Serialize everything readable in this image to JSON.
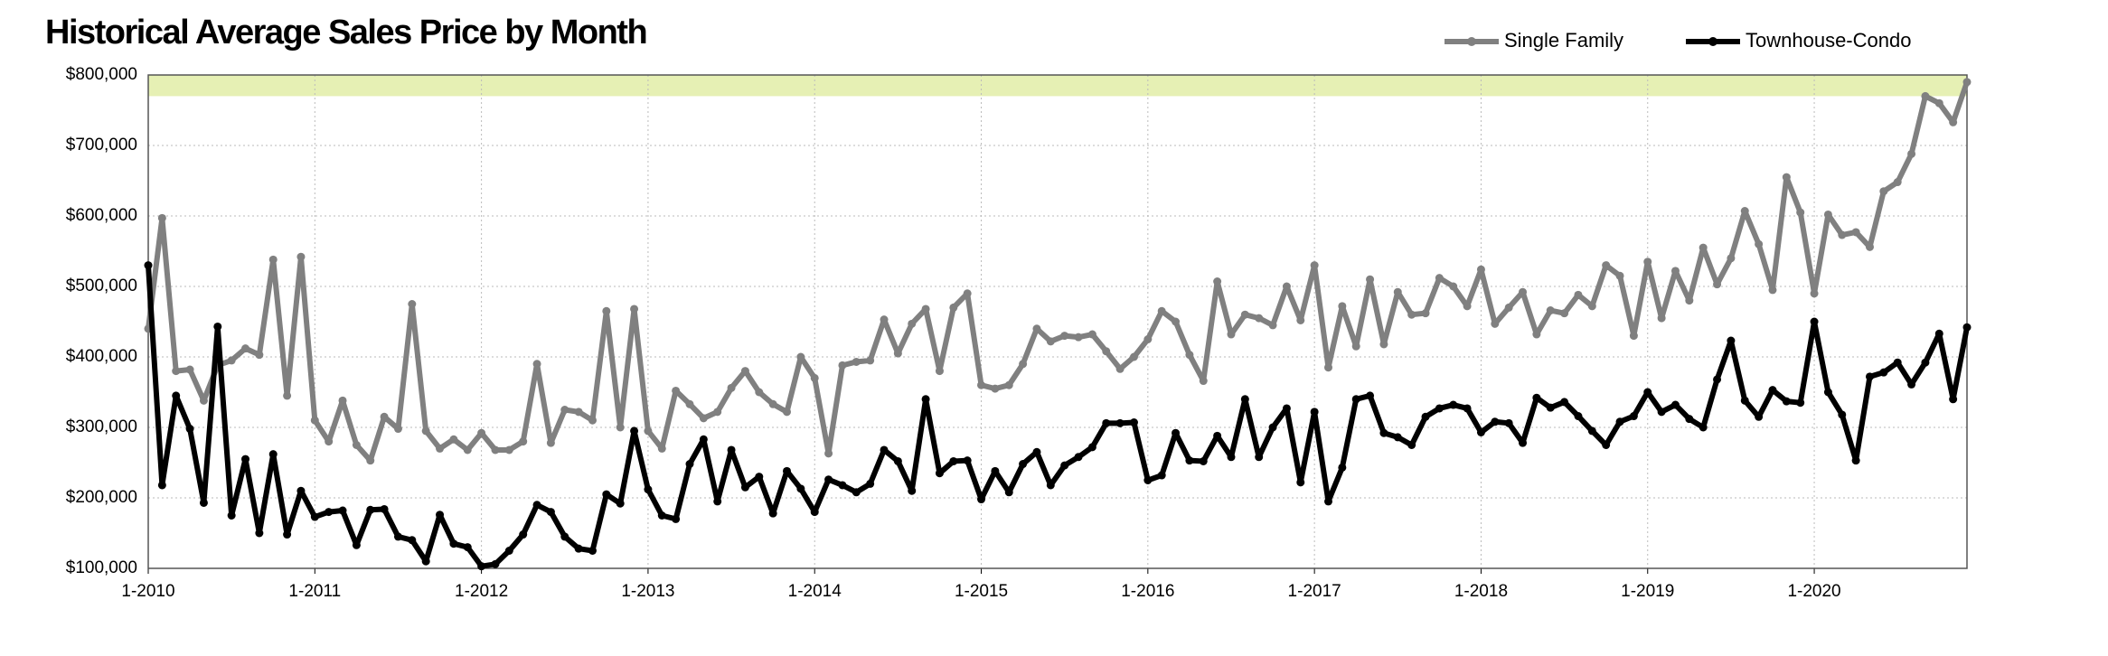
{
  "chart_data": {
    "type": "line",
    "title": "Historical Average Sales Price by Month",
    "categories": [
      "1-2010",
      null,
      null,
      null,
      null,
      null,
      null,
      null,
      null,
      null,
      null,
      null,
      "1-2011",
      null,
      null,
      null,
      null,
      null,
      null,
      null,
      null,
      null,
      null,
      null,
      "1-2012",
      null,
      null,
      null,
      null,
      null,
      null,
      null,
      null,
      null,
      null,
      null,
      "1-2013",
      null,
      null,
      null,
      null,
      null,
      null,
      null,
      null,
      null,
      null,
      null,
      "1-2014",
      null,
      null,
      null,
      null,
      null,
      null,
      null,
      null,
      null,
      null,
      null,
      "1-2015",
      null,
      null,
      null,
      null,
      null,
      null,
      null,
      null,
      null,
      null,
      null,
      "1-2016",
      null,
      null,
      null,
      null,
      null,
      null,
      null,
      null,
      null,
      null,
      null,
      "1-2017",
      null,
      null,
      null,
      null,
      null,
      null,
      null,
      null,
      null,
      null,
      null,
      "1-2018",
      null,
      null,
      null,
      null,
      null,
      null,
      null,
      null,
      null,
      null,
      null,
      "1-2019",
      null,
      null,
      null,
      null,
      null,
      null,
      null,
      null,
      null,
      null,
      null,
      "1-2020",
      null,
      null,
      null,
      null,
      null,
      null,
      null,
      null,
      null,
      null,
      null
    ],
    "series": [
      {
        "name": "Single Family",
        "color": "#808080",
        "values": [
          440000,
          597000,
          380000,
          382000,
          338000,
          388000,
          395000,
          412000,
          403000,
          538000,
          345000,
          542000,
          310000,
          280000,
          338000,
          275000,
          253000,
          315000,
          298000,
          475000,
          295000,
          270000,
          283000,
          268000,
          292000,
          268000,
          268000,
          280000,
          390000,
          278000,
          325000,
          322000,
          310000,
          465000,
          300000,
          468000,
          295000,
          270000,
          352000,
          333000,
          313000,
          322000,
          356000,
          380000,
          350000,
          333000,
          322000,
          400000,
          370000,
          263000,
          388000,
          393000,
          395000,
          453000,
          405000,
          447000,
          468000,
          380000,
          470000,
          490000,
          360000,
          355000,
          360000,
          390000,
          440000,
          422000,
          430000,
          428000,
          432000,
          408000,
          383000,
          400000,
          425000,
          465000,
          450000,
          403000,
          366000,
          507000,
          432000,
          460000,
          455000,
          445000,
          500000,
          452000,
          530000,
          385000,
          472000,
          415000,
          510000,
          418000,
          492000,
          460000,
          462000,
          512000,
          500000,
          472000,
          524000,
          447000,
          470000,
          492000,
          432000,
          466000,
          462000,
          488000,
          472000,
          530000,
          515000,
          430000,
          535000,
          455000,
          522000,
          480000,
          555000,
          503000,
          540000,
          607000,
          560000,
          495000,
          655000,
          605000,
          490000,
          602000,
          573000,
          577000,
          556000,
          635000,
          648000,
          688000,
          770000,
          760000,
          733000,
          790000
        ]
      },
      {
        "name": "Townhouse-Condo",
        "color": "#000000",
        "values": [
          530000,
          218000,
          345000,
          298000,
          193000,
          443000,
          175000,
          255000,
          150000,
          262000,
          148000,
          210000,
          173000,
          180000,
          182000,
          133000,
          183000,
          184000,
          145000,
          140000,
          110000,
          176000,
          135000,
          130000,
          103000,
          106000,
          125000,
          148000,
          190000,
          180000,
          145000,
          128000,
          125000,
          205000,
          192000,
          295000,
          212000,
          175000,
          170000,
          248000,
          283000,
          195000,
          268000,
          215000,
          230000,
          178000,
          238000,
          213000,
          180000,
          226000,
          218000,
          208000,
          220000,
          268000,
          252000,
          210000,
          340000,
          235000,
          252000,
          253000,
          198000,
          238000,
          208000,
          248000,
          265000,
          218000,
          246000,
          258000,
          272000,
          306000,
          306000,
          307000,
          225000,
          232000,
          292000,
          253000,
          252000,
          288000,
          258000,
          340000,
          258000,
          300000,
          327000,
          222000,
          322000,
          195000,
          243000,
          340000,
          345000,
          292000,
          286000,
          275000,
          315000,
          327000,
          332000,
          327000,
          293000,
          308000,
          306000,
          278000,
          342000,
          328000,
          336000,
          316000,
          295000,
          275000,
          308000,
          316000,
          350000,
          322000,
          332000,
          312000,
          300000,
          368000,
          423000,
          338000,
          315000,
          353000,
          337000,
          335000,
          450000,
          350000,
          318000,
          253000,
          372000,
          378000,
          392000,
          361000,
          392000,
          433000,
          340000,
          442000
        ]
      }
    ],
    "ylim": [
      100000,
      800000
    ],
    "yticks": [
      {
        "value": 100000,
        "label": "$100,000"
      },
      {
        "value": 200000,
        "label": "$200,000"
      },
      {
        "value": 300000,
        "label": "$300,000"
      },
      {
        "value": 400000,
        "label": "$400,000"
      },
      {
        "value": 500000,
        "label": "$500,000"
      },
      {
        "value": 600000,
        "label": "$600,000"
      },
      {
        "value": 700000,
        "label": "$700,000"
      },
      {
        "value": 800000,
        "label": "$800,000"
      }
    ],
    "highlight_band": {
      "range": [
        770000,
        800000
      ],
      "color": "#e6f0b4"
    },
    "grid": true,
    "legend": "top-right"
  }
}
